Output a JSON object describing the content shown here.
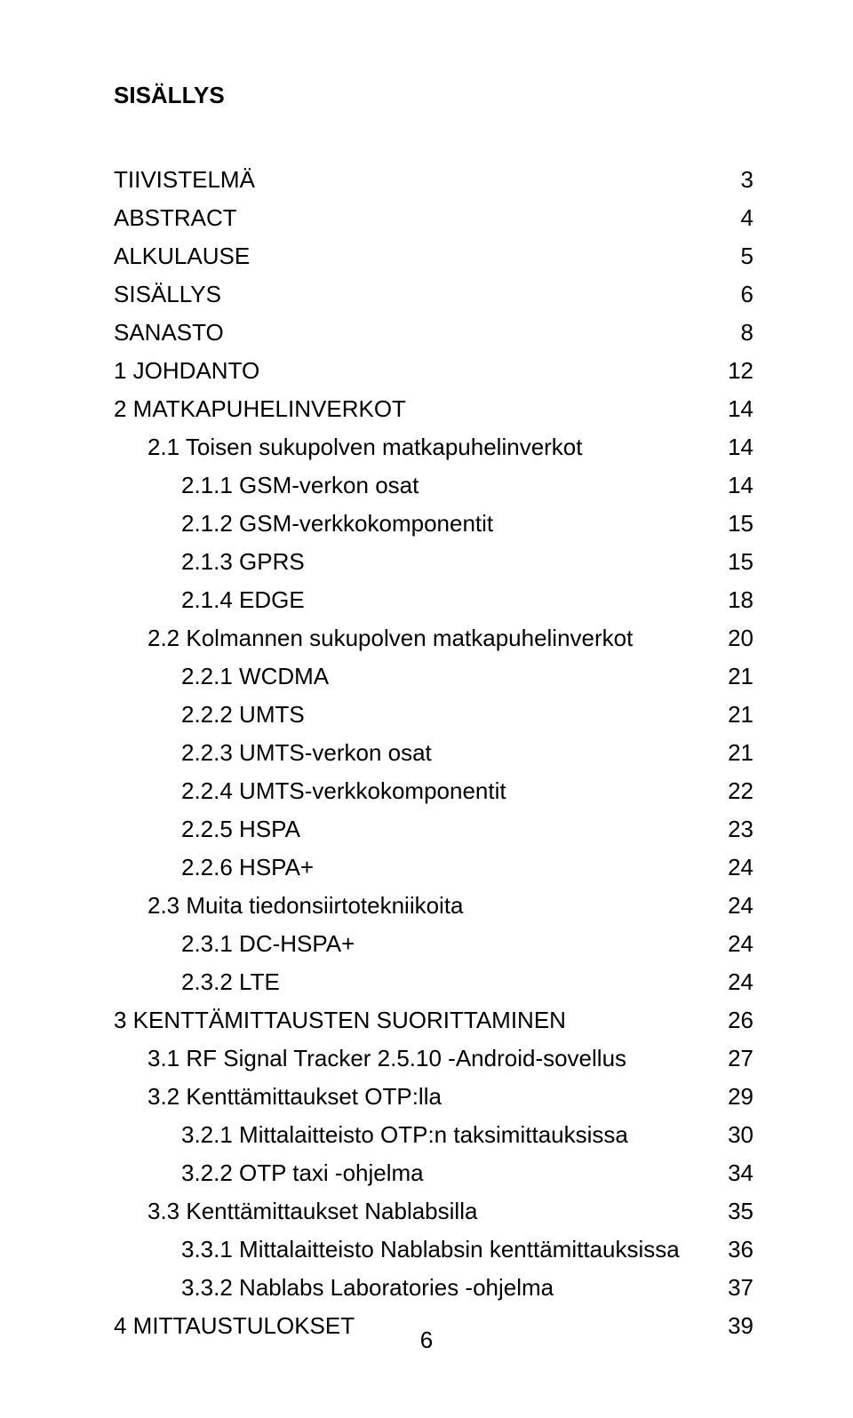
{
  "title": "SISÄLLYS",
  "page_number": "6",
  "toc": [
    {
      "indent": 0,
      "label": "TIIVISTELMÄ",
      "page": "3"
    },
    {
      "indent": 0,
      "label": "ABSTRACT",
      "page": "4"
    },
    {
      "indent": 0,
      "label": "ALKULAUSE",
      "page": "5"
    },
    {
      "indent": 0,
      "label": "SISÄLLYS",
      "page": "6"
    },
    {
      "indent": 0,
      "label": "SANASTO",
      "page": "8"
    },
    {
      "indent": 0,
      "label": "1 JOHDANTO",
      "page": "12"
    },
    {
      "indent": 0,
      "label": "2 MATKAPUHELINVERKOT",
      "page": "14"
    },
    {
      "indent": 1,
      "label": "2.1 Toisen sukupolven matkapuhelinverkot",
      "page": "14"
    },
    {
      "indent": 2,
      "label": "2.1.1 GSM-verkon osat",
      "page": "14"
    },
    {
      "indent": 2,
      "label": "2.1.2 GSM-verkkokomponentit",
      "page": "15"
    },
    {
      "indent": 2,
      "label": "2.1.3 GPRS",
      "page": "15"
    },
    {
      "indent": 2,
      "label": "2.1.4 EDGE",
      "page": "18"
    },
    {
      "indent": 1,
      "label": "2.2 Kolmannen sukupolven matkapuhelinverkot",
      "page": "20"
    },
    {
      "indent": 2,
      "label": "2.2.1 WCDMA",
      "page": "21"
    },
    {
      "indent": 2,
      "label": "2.2.2 UMTS",
      "page": "21"
    },
    {
      "indent": 2,
      "label": "2.2.3 UMTS-verkon osat",
      "page": "21"
    },
    {
      "indent": 2,
      "label": "2.2.4 UMTS-verkkokomponentit",
      "page": "22"
    },
    {
      "indent": 2,
      "label": "2.2.5 HSPA",
      "page": "23"
    },
    {
      "indent": 2,
      "label": "2.2.6 HSPA+",
      "page": "24"
    },
    {
      "indent": 1,
      "label": "2.3 Muita tiedonsiirtotekniikoita",
      "page": "24"
    },
    {
      "indent": 2,
      "label": "2.3.1 DC-HSPA+",
      "page": "24"
    },
    {
      "indent": 2,
      "label": "2.3.2 LTE",
      "page": "24"
    },
    {
      "indent": 0,
      "label": "3 KENTTÄMITTAUSTEN SUORITTAMINEN",
      "page": "26"
    },
    {
      "indent": 1,
      "label": "3.1 RF Signal Tracker 2.5.10 -Android-sovellus",
      "page": "27"
    },
    {
      "indent": 1,
      "label": "3.2 Kenttämittaukset OTP:lla",
      "page": "29"
    },
    {
      "indent": 2,
      "label": "3.2.1 Mittalaitteisto OTP:n taksimittauksissa",
      "page": "30"
    },
    {
      "indent": 2,
      "label": "3.2.2 OTP taxi -ohjelma",
      "page": "34"
    },
    {
      "indent": 1,
      "label": "3.3 Kenttämittaukset Nablabsilla",
      "page": "35"
    },
    {
      "indent": 2,
      "label": "3.3.1 Mittalaitteisto Nablabsin kenttämittauksissa",
      "page": "36"
    },
    {
      "indent": 2,
      "label": "3.3.2 Nablabs Laboratories -ohjelma",
      "page": "37"
    },
    {
      "indent": 0,
      "label": "4 MITTAUSTULOKSET",
      "page": "39"
    }
  ]
}
